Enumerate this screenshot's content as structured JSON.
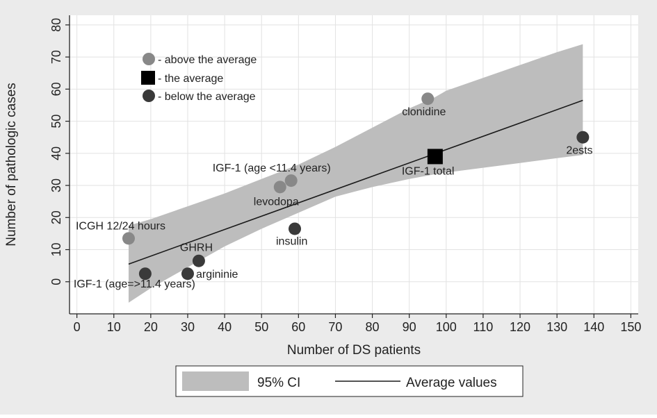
{
  "chart_data": {
    "type": "scatter",
    "xlabel": "Number of DS patients",
    "ylabel": "Number of pathologic cases",
    "xlim": [
      -2,
      152
    ],
    "ylim": [
      -10,
      83
    ],
    "xticks": [
      0,
      10,
      20,
      30,
      40,
      50,
      60,
      70,
      80,
      90,
      100,
      110,
      120,
      130,
      140,
      150
    ],
    "yticks": [
      0,
      10,
      20,
      30,
      40,
      50,
      60,
      70,
      80
    ],
    "grid": true,
    "points": [
      {
        "label": "ICGH 12/24 hours",
        "x": 14,
        "y": 13.5,
        "category": "above"
      },
      {
        "label": "IGF-1 (age=>11.4 years)",
        "x": 18.5,
        "y": 2.5,
        "category": "below"
      },
      {
        "label": "GHRH",
        "x": 33,
        "y": 6.5,
        "category": "below"
      },
      {
        "label": "argininie",
        "x": 30,
        "y": 2.5,
        "category": "below"
      },
      {
        "label": "levodopa",
        "x": 55,
        "y": 29.5,
        "category": "above"
      },
      {
        "label": "IGF-1 (age <11.4 years)",
        "x": 58,
        "y": 31.5,
        "category": "above"
      },
      {
        "label": "insulin",
        "x": 59,
        "y": 16.5,
        "category": "below"
      },
      {
        "label": "clonidine",
        "x": 95,
        "y": 57,
        "category": "above"
      },
      {
        "label": "IGF-1 total",
        "x": 97,
        "y": 39,
        "category": "average"
      },
      {
        "label": "2ests",
        "x": 137,
        "y": 45,
        "category": "below"
      }
    ],
    "fit_line": {
      "x": [
        14,
        137
      ],
      "y": [
        5.5,
        56.5
      ]
    },
    "ci_band": {
      "x": [
        14,
        20,
        30,
        40,
        50,
        60,
        70,
        80,
        90,
        97,
        100,
        110,
        120,
        130,
        137
      ],
      "upper": [
        17.5,
        19.5,
        23.5,
        27.5,
        32,
        36.5,
        42,
        48,
        54,
        57.5,
        59.5,
        63.5,
        67.5,
        71.5,
        74
      ],
      "lower": [
        -6.5,
        -2,
        4.5,
        11,
        16.5,
        21.5,
        26.5,
        29.5,
        32,
        33.5,
        34,
        35.5,
        37,
        38.5,
        39.5
      ]
    },
    "legend_markers": [
      {
        "category": "above",
        "label": "- above the average"
      },
      {
        "category": "average",
        "label": "-  the average"
      },
      {
        "category": "below",
        "label": "- below the average"
      }
    ],
    "legend_bottom": [
      {
        "key": "ci",
        "label": "95% CI"
      },
      {
        "key": "line",
        "label": "Average values"
      }
    ],
    "colors": {
      "above": "#888888",
      "below": "#3a3a3a",
      "average": "#000000",
      "band": "#bdbdbd",
      "line": "#1a1a1a",
      "outer_bg": "#ebebeb",
      "plot_bg": "#ffffff",
      "grid": "#e2e2e2",
      "text": "#222222"
    }
  }
}
